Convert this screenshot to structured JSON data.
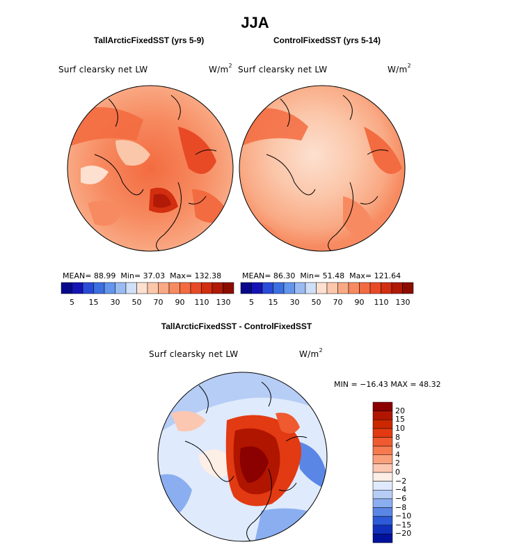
{
  "figure_title": "JJA",
  "chart_data": [
    {
      "type": "heatmap",
      "projection": "north-polar-stereographic",
      "title": "TallArcticFixedSST (yrs 5-9)",
      "variable": "Surf clearsky net LW",
      "units": "W/m",
      "units_power": "2",
      "stats": {
        "mean_label": "MEAN=",
        "mean": "88.99",
        "min_label": "Min=",
        "min": "37.03",
        "max_label": "Max=",
        "max": "132.38"
      },
      "color_levels": [
        5,
        10,
        15,
        20,
        30,
        40,
        50,
        60,
        70,
        80,
        90,
        100,
        110,
        120,
        130
      ],
      "colorbar_tick_labels": [
        "5",
        "15",
        "30",
        "50",
        "70",
        "90",
        "110",
        "130"
      ],
      "colors": [
        "#08088c",
        "#1414b4",
        "#2a4bd7",
        "#3c6fe0",
        "#6495ed",
        "#9abbf2",
        "#cfe0f8",
        "#fde0d0",
        "#fbc7aa",
        "#f9a984",
        "#f78a60",
        "#f36b40",
        "#e84a26",
        "#d22e10",
        "#b01a06",
        "#8a0d00"
      ]
    },
    {
      "type": "heatmap",
      "projection": "north-polar-stereographic",
      "title": "ControlFixedSST (yrs 5-14)",
      "variable": "Surf clearsky net LW",
      "units": "W/m",
      "units_power": "2",
      "stats": {
        "mean_label": "MEAN=",
        "mean": "86.30",
        "min_label": "Min=",
        "min": "51.48",
        "max_label": "Max=",
        "max": "121.64"
      },
      "color_levels": [
        5,
        10,
        15,
        20,
        30,
        40,
        50,
        60,
        70,
        80,
        90,
        100,
        110,
        120,
        130
      ],
      "colorbar_tick_labels": [
        "5",
        "15",
        "30",
        "50",
        "70",
        "90",
        "110",
        "130"
      ]
    },
    {
      "type": "heatmap",
      "projection": "north-polar-stereographic",
      "title": "TallArcticFixedSST - ControlFixedSST",
      "variable": "Surf clearsky net LW",
      "units": "W/m",
      "units_power": "2",
      "stats_text": "MIN = −16.43 MAX =  48.32",
      "color_levels": [
        "20",
        "15",
        "10",
        "8",
        "6",
        "4",
        "2",
        "0",
        "−2",
        "−4",
        "−6",
        "−8",
        "−10",
        "−15",
        "−20"
      ],
      "colors": [
        "#8b0000",
        "#b01500",
        "#cc2800",
        "#e23a12",
        "#ef5a30",
        "#f57a50",
        "#f9a07c",
        "#fcc7b0",
        "#fdeee6",
        "#dfeafc",
        "#b6cdf6",
        "#8aaef0",
        "#5a86e6",
        "#2d5ad8",
        "#1030bb",
        "#00129a"
      ]
    }
  ]
}
